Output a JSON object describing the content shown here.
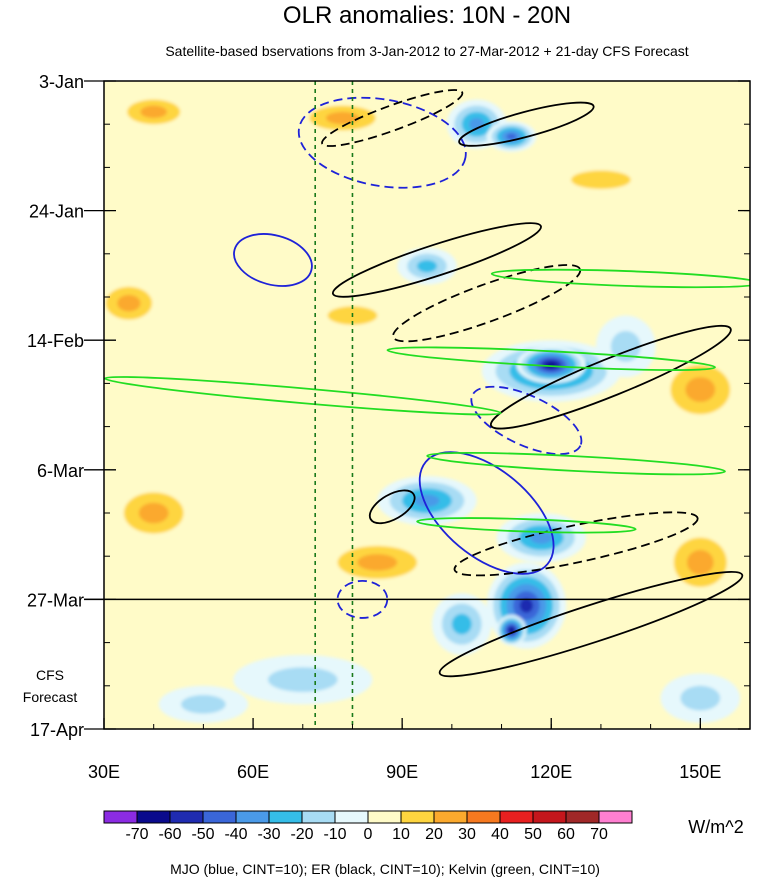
{
  "chart_data": {
    "type": "heatmap",
    "title": "OLR anomalies: 10N - 20N",
    "subtitle": "Satellite-based bservations from 3-Jan-2012 to 27-Mar-2012 + 21-day CFS Forecast",
    "x_axis": {
      "range": [
        30,
        160
      ],
      "ticks": [
        {
          "value": 30,
          "label": "30E"
        },
        {
          "value": 60,
          "label": "60E"
        },
        {
          "value": 90,
          "label": "90E"
        },
        {
          "value": 120,
          "label": "120E"
        },
        {
          "value": 150,
          "label": "150E"
        }
      ],
      "minor_step": 10
    },
    "y_axis": {
      "range_days": [
        0,
        105
      ],
      "start_date": "3-Jan-2012",
      "ticks": [
        {
          "day": 0,
          "label": "3-Jan"
        },
        {
          "day": 21,
          "label": "24-Jan"
        },
        {
          "day": 42,
          "label": "14-Feb"
        },
        {
          "day": 63,
          "label": "6-Mar"
        },
        {
          "day": 84,
          "label": "27-Mar"
        },
        {
          "day": 105,
          "label": "17-Apr"
        }
      ],
      "minor_step_days": 7
    },
    "forecast_start_day": 84,
    "forecast_label": [
      "CFS",
      "Forecast"
    ],
    "reference_lines_lon": [
      72.5,
      80
    ],
    "colorbar": {
      "units": "W/m^2",
      "levels": [
        -70,
        -60,
        -50,
        -40,
        -30,
        -20,
        -10,
        0,
        10,
        20,
        30,
        40,
        50,
        60,
        70
      ],
      "labels": [
        "-70",
        "-60",
        "-50",
        "-40",
        "-30",
        "-20",
        "-10",
        "0",
        "10",
        "20",
        "30",
        "40",
        "50",
        "60",
        "70"
      ],
      "colors": [
        "#8b2be2",
        "#0a0a8c",
        "#1f2bb0",
        "#3a66d8",
        "#4a9ae8",
        "#35bde8",
        "#a8dcf4",
        "#e6f8fc",
        "#fffbc8",
        "#fed53f",
        "#fba92d",
        "#f6791f",
        "#e82020",
        "#c4161c",
        "#a02828",
        "#ff7fd1"
      ]
    },
    "footer": "MJO (blue, CINT=10); ER (black, CINT=10); Kelvin (green, CINT=10)",
    "blobs": [
      {
        "lon": 105,
        "day": 7,
        "r_lon": 6,
        "r_day": 4,
        "value": -35
      },
      {
        "lon": 112,
        "day": 9,
        "r_lon": 5,
        "r_day": 2.5,
        "value": -45
      },
      {
        "lon": 95,
        "day": 30,
        "r_lon": 6,
        "r_day": 3,
        "value": -30
      },
      {
        "lon": 120,
        "day": 47,
        "r_lon": 14,
        "r_day": 5,
        "value": -45
      },
      {
        "lon": 120,
        "day": 46,
        "r_lon": 7,
        "r_day": 3,
        "value": -65
      },
      {
        "lon": 135,
        "day": 43,
        "r_lon": 6,
        "r_day": 5,
        "value": -20
      },
      {
        "lon": 95,
        "day": 68,
        "r_lon": 10,
        "r_day": 4,
        "value": -35
      },
      {
        "lon": 118,
        "day": 74,
        "r_lon": 9,
        "r_day": 4,
        "value": -40
      },
      {
        "lon": 115,
        "day": 85,
        "r_lon": 8,
        "r_day": 7,
        "value": -55
      },
      {
        "lon": 112,
        "day": 89,
        "r_lon": 3,
        "r_day": 2.5,
        "value": -70
      },
      {
        "lon": 102,
        "day": 88,
        "r_lon": 6,
        "r_day": 5,
        "value": -30
      },
      {
        "lon": 70,
        "day": 97,
        "r_lon": 14,
        "r_day": 4,
        "value": -18
      },
      {
        "lon": 50,
        "day": 101,
        "r_lon": 9,
        "r_day": 3,
        "value": -22
      },
      {
        "lon": 150,
        "day": 100,
        "r_lon": 8,
        "r_day": 4,
        "value": -15
      },
      {
        "lon": 40,
        "day": 5,
        "r_lon": 8,
        "r_day": 3,
        "value": 25
      },
      {
        "lon": 78,
        "day": 6,
        "r_lon": 10,
        "r_day": 3,
        "value": 25
      },
      {
        "lon": 130,
        "day": 16,
        "r_lon": 12,
        "r_day": 3,
        "value": 20
      },
      {
        "lon": 35,
        "day": 36,
        "r_lon": 7,
        "r_day": 4,
        "value": 25
      },
      {
        "lon": 80,
        "day": 38,
        "r_lon": 10,
        "r_day": 3,
        "value": 20
      },
      {
        "lon": 150,
        "day": 50,
        "r_lon": 9,
        "r_day": 6,
        "value": 25
      },
      {
        "lon": 40,
        "day": 70,
        "r_lon": 9,
        "r_day": 5,
        "value": 30
      },
      {
        "lon": 85,
        "day": 78,
        "r_lon": 12,
        "r_day": 4,
        "value": 25
      },
      {
        "lon": 150,
        "day": 78,
        "r_lon": 8,
        "r_day": 6,
        "value": 25
      }
    ],
    "contours": [
      {
        "type": "MJO",
        "color": "blue",
        "dashed": true,
        "lon": 86,
        "day": 10,
        "r_lon": 17,
        "r_day": 7,
        "tilt": 10
      },
      {
        "type": "MJO",
        "color": "blue",
        "dashed": false,
        "lon": 64,
        "day": 29,
        "r_lon": 8,
        "r_day": 4,
        "tilt": 15
      },
      {
        "type": "MJO",
        "color": "blue",
        "dashed": false,
        "lon": 107,
        "day": 70,
        "r_lon": 16,
        "r_day": 7,
        "tilt": 40
      },
      {
        "type": "MJO",
        "color": "blue",
        "dashed": true,
        "lon": 82,
        "day": 84,
        "r_lon": 5,
        "r_day": 3,
        "tilt": 0
      },
      {
        "type": "MJO",
        "color": "blue",
        "dashed": true,
        "lon": 115,
        "day": 55,
        "r_lon": 12,
        "r_day": 4,
        "tilt": 25
      },
      {
        "type": "ER",
        "color": "black",
        "dashed": false,
        "lon": 115,
        "day": 7,
        "r_lon": 14,
        "r_day": 2,
        "tilt": -15
      },
      {
        "type": "ER",
        "color": "black",
        "dashed": true,
        "lon": 88,
        "day": 6,
        "r_lon": 15,
        "r_day": 2,
        "tilt": -20
      },
      {
        "type": "ER",
        "color": "black",
        "dashed": false,
        "lon": 97,
        "day": 29,
        "r_lon": 22,
        "r_day": 2.5,
        "tilt": -18
      },
      {
        "type": "ER",
        "color": "black",
        "dashed": false,
        "lon": 132,
        "day": 48,
        "r_lon": 26,
        "r_day": 3,
        "tilt": -22
      },
      {
        "type": "ER",
        "color": "black",
        "dashed": true,
        "lon": 107,
        "day": 36,
        "r_lon": 20,
        "r_day": 3,
        "tilt": -20
      },
      {
        "type": "ER",
        "color": "black",
        "dashed": false,
        "lon": 88,
        "day": 69,
        "r_lon": 5,
        "r_day": 2,
        "tilt": -30
      },
      {
        "type": "ER",
        "color": "black",
        "dashed": true,
        "lon": 125,
        "day": 75,
        "r_lon": 25,
        "r_day": 3,
        "tilt": -12
      },
      {
        "type": "ER",
        "color": "black",
        "dashed": false,
        "lon": 128,
        "day": 88,
        "r_lon": 32,
        "r_day": 3,
        "tilt": -18
      },
      {
        "type": "Kelvin",
        "color": "green",
        "dashed": false,
        "lon": 70,
        "day": 51,
        "r_lon": 40,
        "r_day": 1.2,
        "tilt": 5
      },
      {
        "type": "Kelvin",
        "color": "green",
        "dashed": false,
        "lon": 120,
        "day": 45,
        "r_lon": 33,
        "r_day": 1.2,
        "tilt": 3
      },
      {
        "type": "Kelvin",
        "color": "green",
        "dashed": false,
        "lon": 135,
        "day": 32,
        "r_lon": 27,
        "r_day": 1.2,
        "tilt": 2
      },
      {
        "type": "Kelvin",
        "color": "green",
        "dashed": false,
        "lon": 125,
        "day": 62,
        "r_lon": 30,
        "r_day": 1.2,
        "tilt": 3
      },
      {
        "type": "Kelvin",
        "color": "green",
        "dashed": false,
        "lon": 115,
        "day": 72,
        "r_lon": 22,
        "r_day": 1,
        "tilt": 2
      }
    ]
  }
}
